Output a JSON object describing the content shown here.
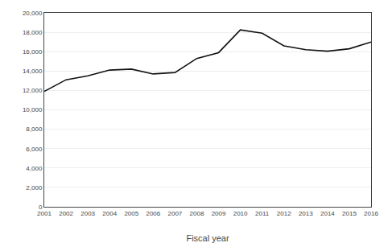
{
  "chart_data": {
    "type": "line",
    "xlabel": "Fiscal year",
    "x": [
      2001,
      2002,
      2003,
      2004,
      2005,
      2006,
      2007,
      2008,
      2009,
      2010,
      2011,
      2012,
      2013,
      2014,
      2015,
      2016
    ],
    "values": [
      11900,
      13100,
      13500,
      14100,
      14200,
      13700,
      13850,
      15300,
      15900,
      18250,
      17900,
      16600,
      16200,
      16050,
      16300,
      17000
    ],
    "color": "#111111",
    "xlim": [
      2001,
      2016
    ],
    "xticks": [
      2001,
      2002,
      2003,
      2004,
      2005,
      2006,
      2007,
      2008,
      2009,
      2010,
      2011,
      2012,
      2013,
      2014,
      2015,
      2016
    ],
    "ylim": [
      0,
      20000
    ],
    "yticks": [
      0,
      {
        "value": 2000,
        "label": "2,000"
      },
      {
        "value": 4000,
        "label": "4,000"
      },
      {
        "value": 6000,
        "label": "6,000"
      },
      {
        "value": 8000,
        "label": "8,000"
      },
      {
        "value": 10000,
        "label": "10,000"
      },
      {
        "value": 12000,
        "label": "12,000"
      },
      {
        "value": 14000,
        "label": "14,000"
      },
      {
        "value": 16000,
        "label": "16,000"
      },
      {
        "value": 18000,
        "label": "18,000"
      },
      {
        "value": 20000,
        "label": "20,000"
      }
    ],
    "grid": true
  }
}
